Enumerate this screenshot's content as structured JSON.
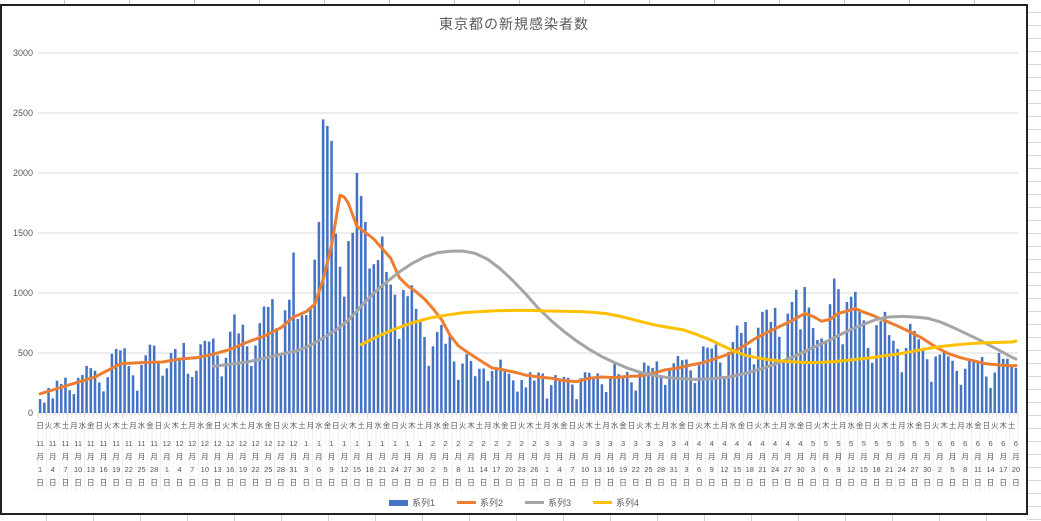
{
  "window": {
    "app_context": "spreadsheet-embedded-chart"
  },
  "chart_data": {
    "type": "combo",
    "title": "東京都の新規感染者数",
    "ylabel": "",
    "xlabel": "",
    "ylim": [
      0,
      3000
    ],
    "y_ticks": [
      0,
      500,
      1000,
      1500,
      2000,
      2500,
      3000
    ],
    "grid": true,
    "legend_position": "bottom",
    "categories_days": 232,
    "start_date_label": "11月1日",
    "end_date_label": "6月20日",
    "x_axis": {
      "weekday_cycle": "日火木土月水金",
      "weekday_label_count": 116,
      "weekday_label_interval_days": 2,
      "date_label_interval_days": 3,
      "month_suffix": "月",
      "day_suffix": "日",
      "date_labels": [
        [
          11,
          1
        ],
        [
          11,
          4
        ],
        [
          11,
          7
        ],
        [
          11,
          10
        ],
        [
          11,
          13
        ],
        [
          11,
          16
        ],
        [
          11,
          19
        ],
        [
          11,
          22
        ],
        [
          11,
          25
        ],
        [
          11,
          28
        ],
        [
          12,
          1
        ],
        [
          12,
          4
        ],
        [
          12,
          7
        ],
        [
          12,
          10
        ],
        [
          12,
          13
        ],
        [
          12,
          16
        ],
        [
          12,
          19
        ],
        [
          12,
          22
        ],
        [
          12,
          25
        ],
        [
          12,
          28
        ],
        [
          12,
          31
        ],
        [
          1,
          3
        ],
        [
          1,
          6
        ],
        [
          1,
          9
        ],
        [
          1,
          12
        ],
        [
          1,
          15
        ],
        [
          1,
          18
        ],
        [
          1,
          21
        ],
        [
          1,
          24
        ],
        [
          1,
          27
        ],
        [
          1,
          30
        ],
        [
          2,
          2
        ],
        [
          2,
          5
        ],
        [
          2,
          8
        ],
        [
          2,
          11
        ],
        [
          2,
          14
        ],
        [
          2,
          17
        ],
        [
          2,
          20
        ],
        [
          2,
          23
        ],
        [
          2,
          26
        ],
        [
          3,
          1
        ],
        [
          3,
          4
        ],
        [
          3,
          7
        ],
        [
          3,
          10
        ],
        [
          3,
          13
        ],
        [
          3,
          16
        ],
        [
          3,
          19
        ],
        [
          3,
          22
        ],
        [
          3,
          25
        ],
        [
          3,
          28
        ],
        [
          3,
          31
        ],
        [
          4,
          3
        ],
        [
          4,
          6
        ],
        [
          4,
          9
        ],
        [
          4,
          12
        ],
        [
          4,
          15
        ],
        [
          4,
          18
        ],
        [
          4,
          21
        ],
        [
          4,
          24
        ],
        [
          4,
          27
        ],
        [
          4,
          30
        ],
        [
          5,
          3
        ],
        [
          5,
          6
        ],
        [
          5,
          9
        ],
        [
          5,
          12
        ],
        [
          5,
          15
        ],
        [
          5,
          18
        ],
        [
          5,
          21
        ],
        [
          5,
          24
        ],
        [
          5,
          27
        ],
        [
          5,
          30
        ],
        [
          6,
          2
        ],
        [
          6,
          5
        ],
        [
          6,
          8
        ],
        [
          6,
          11
        ],
        [
          6,
          14
        ],
        [
          6,
          17
        ],
        [
          6,
          20
        ]
      ]
    },
    "series": [
      {
        "name": "系列1",
        "type": "bar",
        "color": "#4472C4",
        "values": [
          116,
          87,
          209,
          122,
          269,
          242,
          294,
          189,
          157,
          293,
          317,
          393,
          374,
          352,
          255,
          180,
          298,
          493,
          534,
          522,
          539,
          391,
          314,
          186,
          401,
          481,
          570,
          561,
          418,
          311,
          372,
          500,
          533,
          449,
          584,
          327,
          299,
          352,
          572,
          602,
          595,
          621,
          480,
          305,
          460,
          678,
          821,
          664,
          736,
          556,
          392,
          563,
          748,
          888,
          884,
          949,
          708,
          481,
          856,
          944,
          1337,
          783,
          814,
          816,
          884,
          1278,
          1591,
          2447,
          2392,
          2268,
          1494,
          1219,
          970,
          1433,
          1502,
          2001,
          1809,
          1592,
          1204,
          1240,
          1274,
          1471,
          1175,
          1070,
          986,
          618,
          1026,
          973,
          1064,
          868,
          769,
          633,
          393,
          556,
          676,
          734,
          577,
          639,
          429,
          276,
          412,
          491,
          434,
          307,
          369,
          371,
          266,
          350,
          378,
          445,
          353,
          327,
          272,
          178,
          275,
          213,
          340,
          270,
          337,
          329,
          121,
          232,
          316,
          279,
          301,
          293,
          237,
          116,
          290,
          340,
          335,
          304,
          330,
          239,
          175,
          300,
          409,
          323,
          303,
          342,
          256,
          187,
          337,
          420,
          394,
          376,
          430,
          313,
          234,
          364,
          414,
          475,
          440,
          446,
          355,
          249,
          399,
          555,
          545,
          537,
          570,
          421,
          306,
          510,
          591,
          729,
          667,
          759,
          543,
          405,
          711,
          843,
          861,
          759,
          876,
          635,
          425,
          828,
          925,
          1027,
          698,
          1050,
          879,
          708,
          609,
          621,
          591,
          907,
          1121,
          1032,
          573,
          925,
          969,
          1010,
          854,
          772,
          542,
          419,
          732,
          766,
          843,
          649,
          602,
          535,
          340,
          542,
          743,
          684,
          614,
          539,
          448,
          260,
          471,
          487,
          508,
          472,
          436,
          351,
          235,
          369,
          440,
          439,
          435,
          467,
          304,
          209,
          337,
          501,
          452,
          453,
          388,
          376
        ]
      },
      {
        "name": "系列2",
        "type": "line",
        "color": "#ED7D31",
        "points": [
          [
            0,
            160
          ],
          [
            6,
            225
          ],
          [
            13,
            300
          ],
          [
            19,
            410
          ],
          [
            24,
            420
          ],
          [
            29,
            425
          ],
          [
            33,
            450
          ],
          [
            37,
            460
          ],
          [
            41,
            490
          ],
          [
            45,
            530
          ],
          [
            49,
            590
          ],
          [
            53,
            640
          ],
          [
            57,
            710
          ],
          [
            60,
            800
          ],
          [
            63,
            845
          ],
          [
            65,
            905
          ],
          [
            67,
            1110
          ],
          [
            69,
            1400
          ],
          [
            71,
            1815
          ],
          [
            72,
            1800
          ],
          [
            73,
            1745
          ],
          [
            75,
            1555
          ],
          [
            77,
            1505
          ],
          [
            79,
            1450
          ],
          [
            81,
            1370
          ],
          [
            83,
            1290
          ],
          [
            85,
            1130
          ],
          [
            87,
            1060
          ],
          [
            89,
            1010
          ],
          [
            91,
            950
          ],
          [
            93,
            870
          ],
          [
            95,
            780
          ],
          [
            97,
            650
          ],
          [
            99,
            560
          ],
          [
            101,
            510
          ],
          [
            103,
            465
          ],
          [
            105,
            420
          ],
          [
            107,
            375
          ],
          [
            109,
            365
          ],
          [
            111,
            350
          ],
          [
            113,
            335
          ],
          [
            115,
            315
          ],
          [
            118,
            300
          ],
          [
            121,
            290
          ],
          [
            124,
            270
          ],
          [
            127,
            262
          ],
          [
            130,
            290
          ],
          [
            133,
            300
          ],
          [
            136,
            295
          ],
          [
            139,
            305
          ],
          [
            142,
            308
          ],
          [
            145,
            330
          ],
          [
            148,
            360
          ],
          [
            151,
            375
          ],
          [
            154,
            400
          ],
          [
            157,
            420
          ],
          [
            160,
            455
          ],
          [
            163,
            490
          ],
          [
            166,
            545
          ],
          [
            169,
            615
          ],
          [
            172,
            670
          ],
          [
            175,
            720
          ],
          [
            178,
            770
          ],
          [
            181,
            830
          ],
          [
            183,
            805
          ],
          [
            185,
            765
          ],
          [
            187,
            780
          ],
          [
            189,
            830
          ],
          [
            191,
            850
          ],
          [
            193,
            870
          ],
          [
            195,
            840
          ],
          [
            197,
            815
          ],
          [
            200,
            770
          ],
          [
            203,
            725
          ],
          [
            206,
            675
          ],
          [
            209,
            620
          ],
          [
            212,
            550
          ],
          [
            215,
            495
          ],
          [
            218,
            460
          ],
          [
            221,
            435
          ],
          [
            224,
            410
          ],
          [
            227,
            400
          ],
          [
            230,
            393
          ],
          [
            231,
            395
          ]
        ]
      },
      {
        "name": "系列3",
        "type": "line",
        "color": "#A5A5A5",
        "points": [
          [
            41,
            390
          ],
          [
            45,
            405
          ],
          [
            49,
            425
          ],
          [
            53,
            455
          ],
          [
            57,
            490
          ],
          [
            61,
            520
          ],
          [
            64,
            565
          ],
          [
            67,
            625
          ],
          [
            70,
            690
          ],
          [
            73,
            775
          ],
          [
            76,
            890
          ],
          [
            79,
            1000
          ],
          [
            82,
            1090
          ],
          [
            85,
            1175
          ],
          [
            88,
            1245
          ],
          [
            91,
            1300
          ],
          [
            94,
            1335
          ],
          [
            97,
            1348
          ],
          [
            100,
            1350
          ],
          [
            103,
            1330
          ],
          [
            106,
            1280
          ],
          [
            109,
            1200
          ],
          [
            112,
            1100
          ],
          [
            115,
            990
          ],
          [
            118,
            870
          ],
          [
            121,
            770
          ],
          [
            124,
            680
          ],
          [
            127,
            600
          ],
          [
            130,
            530
          ],
          [
            133,
            470
          ],
          [
            136,
            420
          ],
          [
            139,
            375
          ],
          [
            142,
            340
          ],
          [
            145,
            315
          ],
          [
            148,
            298
          ],
          [
            151,
            288
          ],
          [
            155,
            280
          ],
          [
            159,
            285
          ],
          [
            163,
            300
          ],
          [
            167,
            330
          ],
          [
            171,
            370
          ],
          [
            175,
            420
          ],
          [
            179,
            480
          ],
          [
            183,
            545
          ],
          [
            187,
            610
          ],
          [
            191,
            680
          ],
          [
            195,
            740
          ],
          [
            198,
            780
          ],
          [
            201,
            800
          ],
          [
            204,
            805
          ],
          [
            207,
            800
          ],
          [
            210,
            790
          ],
          [
            213,
            760
          ],
          [
            216,
            715
          ],
          [
            219,
            665
          ],
          [
            222,
            615
          ],
          [
            225,
            560
          ],
          [
            228,
            505
          ],
          [
            230,
            465
          ],
          [
            231,
            450
          ]
        ]
      },
      {
        "name": "系列4",
        "type": "line",
        "color": "#FFC000",
        "points": [
          [
            76,
            570
          ],
          [
            80,
            640
          ],
          [
            84,
            700
          ],
          [
            88,
            750
          ],
          [
            92,
            790
          ],
          [
            96,
            815
          ],
          [
            100,
            835
          ],
          [
            104,
            845
          ],
          [
            108,
            852
          ],
          [
            112,
            855
          ],
          [
            116,
            855
          ],
          [
            120,
            850
          ],
          [
            124,
            848
          ],
          [
            128,
            845
          ],
          [
            131,
            838
          ],
          [
            134,
            828
          ],
          [
            137,
            808
          ],
          [
            140,
            782
          ],
          [
            143,
            755
          ],
          [
            146,
            730
          ],
          [
            149,
            712
          ],
          [
            152,
            695
          ],
          [
            155,
            660
          ],
          [
            158,
            620
          ],
          [
            161,
            570
          ],
          [
            164,
            520
          ],
          [
            167,
            480
          ],
          [
            170,
            458
          ],
          [
            173,
            442
          ],
          [
            176,
            432
          ],
          [
            179,
            425
          ],
          [
            182,
            420
          ],
          [
            185,
            422
          ],
          [
            188,
            428
          ],
          [
            191,
            438
          ],
          [
            194,
            450
          ],
          [
            197,
            462
          ],
          [
            200,
            478
          ],
          [
            203,
            492
          ],
          [
            206,
            510
          ],
          [
            209,
            530
          ],
          [
            212,
            548
          ],
          [
            215,
            562
          ],
          [
            218,
            572
          ],
          [
            221,
            580
          ],
          [
            224,
            585
          ],
          [
            227,
            588
          ],
          [
            230,
            592
          ],
          [
            231,
            600
          ]
        ]
      }
    ],
    "legend_entries": [
      "系列1",
      "系列2",
      "系列3",
      "系列4"
    ],
    "colors": {
      "bar": "#4472C4",
      "line2": "#ED7D31",
      "line3": "#A5A5A5",
      "line4": "#FFC000",
      "gridline": "#D9D9D9",
      "axis_text": "#595959",
      "chart_border": "#222222"
    }
  }
}
